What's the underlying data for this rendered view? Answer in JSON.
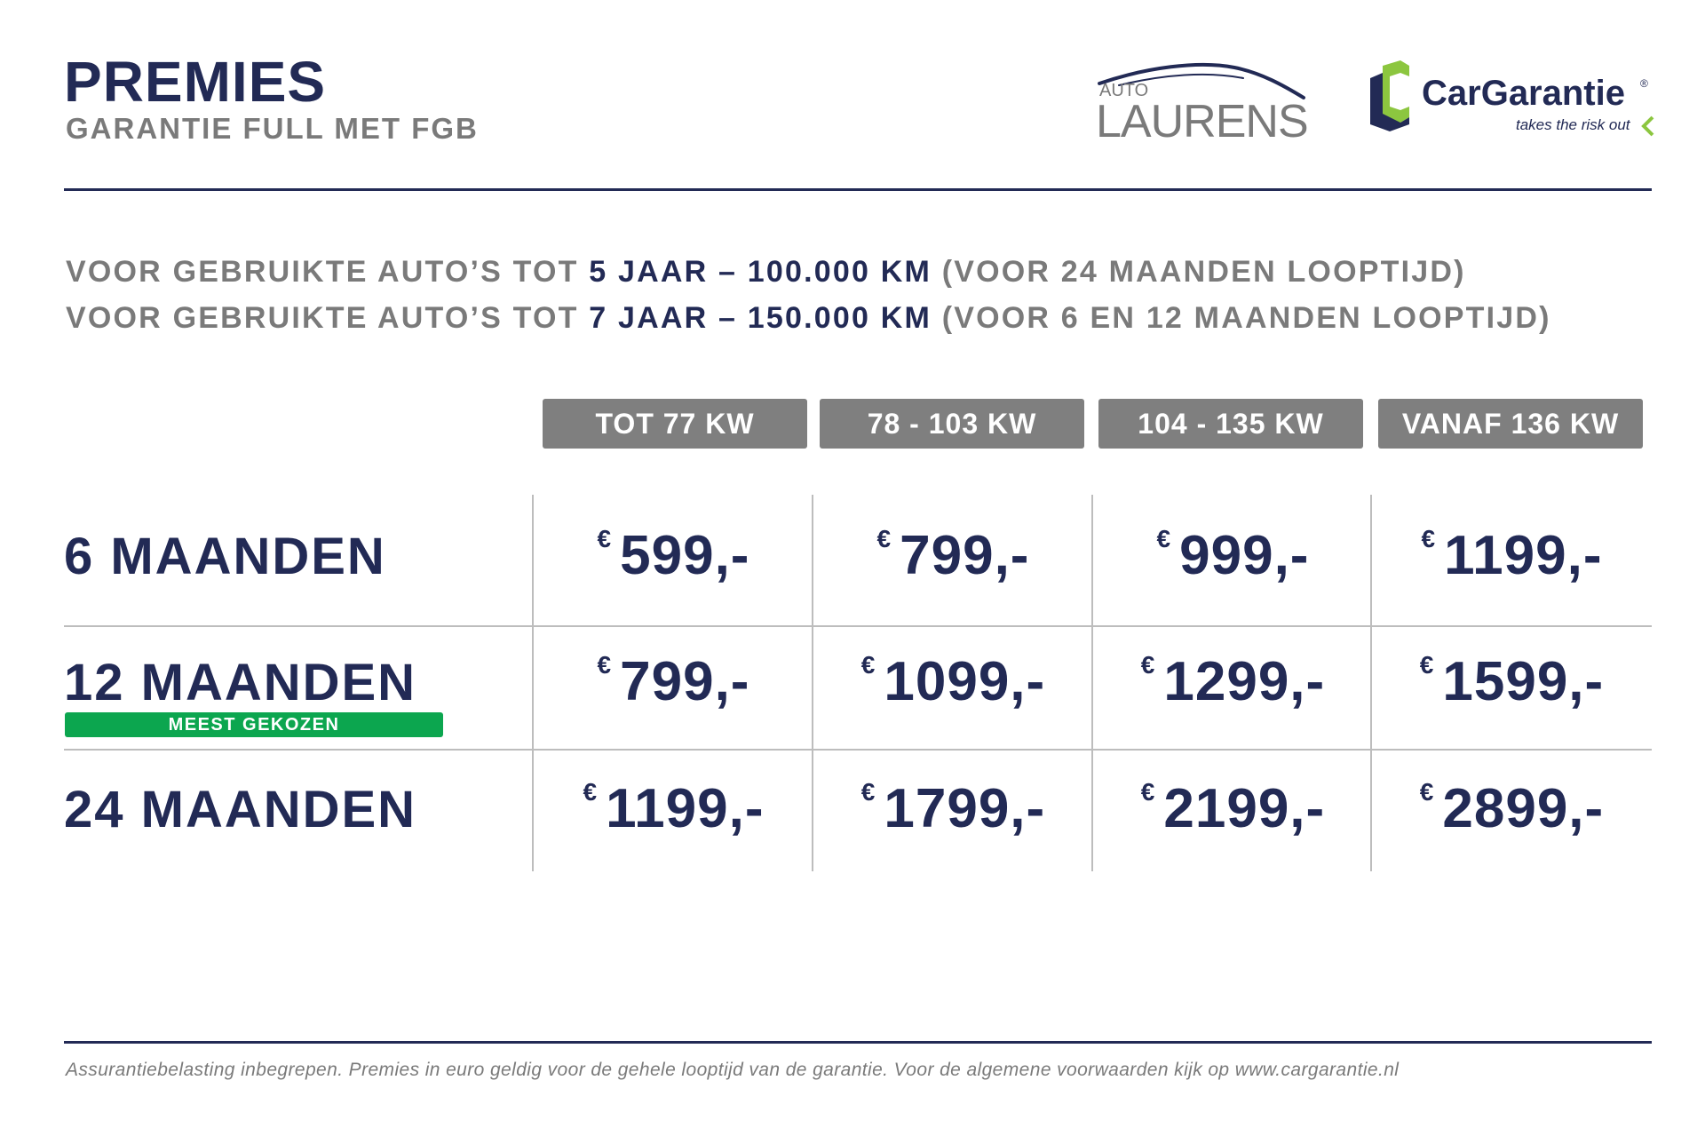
{
  "header": {
    "title": "PREMIES",
    "subtitle": "GARANTIE FULL MET FGB"
  },
  "logos": {
    "laurens": {
      "small": "AUTO",
      "big": "LAURENS"
    },
    "cargarantie": {
      "name": "CarGarantie",
      "registered": "®",
      "tagline": "takes the risk out"
    }
  },
  "info": {
    "line1": {
      "prefix": "VOOR GEBRUIKTE AUTO’S TOT ",
      "highlight": "5 JAAR – 100.000 KM",
      "suffix": " (VOOR 24 MAANDEN LOOPTIJD)"
    },
    "line2": {
      "prefix": "VOOR GEBRUIKTE AUTO’S TOT ",
      "highlight": "7 JAAR – 150.000 KM",
      "suffix": " (VOOR 6 EN 12 MAANDEN LOOPTIJD)"
    }
  },
  "table": {
    "columns": [
      "TOT 77 KW",
      "78 - 103 KW",
      "104 - 135 KW",
      "VANAF 136 KW"
    ],
    "currency": "€",
    "rows": [
      {
        "label": "6 MAANDEN",
        "prices": [
          "599,-",
          "799,-",
          "999,-",
          "1199,-"
        ]
      },
      {
        "label": "12 MAANDEN",
        "badge": "MEEST GEKOZEN",
        "prices": [
          "799,-",
          "1099,-",
          "1299,-",
          "1599,-"
        ]
      },
      {
        "label": "24 MAANDEN",
        "prices": [
          "1199,-",
          "1799,-",
          "2199,-",
          "2899,-"
        ]
      }
    ]
  },
  "footer": {
    "text": "Assurantiebelasting inbegrepen. Premies in euro geldig voor de gehele looptijd van de garantie. Voor de algemene voorwaarden kijk op www.cargarantie.nl"
  },
  "colors": {
    "navy": "#222a55",
    "grey": "#7a7a7a",
    "header_bg": "#7f7f7f",
    "badge_green": "#0ca64f",
    "logo_green": "#8cc63f"
  }
}
